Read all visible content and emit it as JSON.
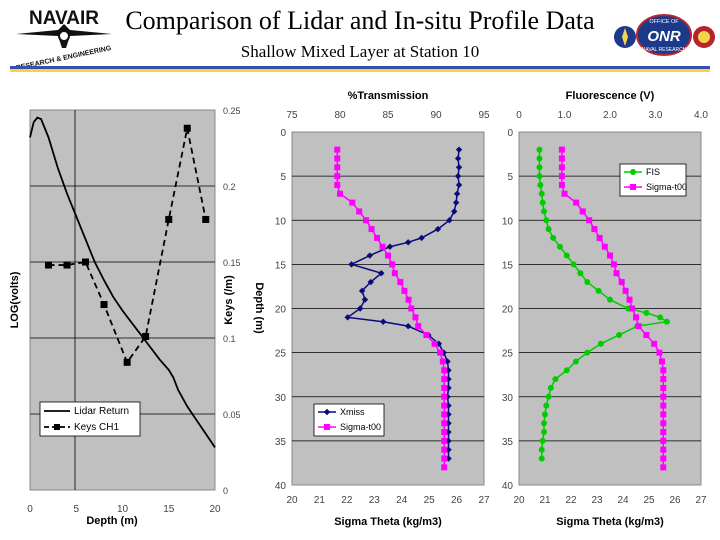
{
  "header": {
    "title": "Comparison of Lidar and In-situ Profile Data",
    "subtitle": "Shallow Mixed Layer at Station 10",
    "logo_left_text": "NAVAIR",
    "logo_left_subtext": "RESEARCH & ENGINEERING",
    "logo_right_text": "ONR",
    "logo_right_top": "OFFICE OF",
    "logo_right_bottom": "NAVAL RESEARCH"
  },
  "colors": {
    "plot_bg": "#c0c0c0",
    "lidar": "#000000",
    "transmission": "#0a0a7a",
    "sigma": "#ff00ff",
    "fluorescence": "#00cc00",
    "rule_blue": "#3a4fa8",
    "rule_yellow": "#f2d54a"
  },
  "chart_data": [
    {
      "type": "line",
      "title": "",
      "xlabel": "Depth (m)",
      "ylabel": "LOG(volts)",
      "y2label": "Keys (/m)",
      "xlim": [
        0,
        20
      ],
      "ylim": [
        0,
        0.25
      ],
      "x_ticks": [
        "0",
        "5",
        "10",
        "15",
        "20"
      ],
      "y2_ticks": [
        "0.25",
        "0.2",
        "0.15",
        "0.1",
        "0.05",
        "0"
      ],
      "series": [
        {
          "name": "Lidar Return",
          "style": "solid",
          "x": [
            0,
            0.4,
            0.8,
            1.2,
            2,
            3,
            4,
            5,
            6,
            7,
            8,
            9,
            10,
            11,
            12,
            13,
            14,
            15,
            15.5,
            16,
            17,
            18,
            19,
            20
          ],
          "y": [
            0.232,
            0.242,
            0.245,
            0.244,
            0.232,
            0.212,
            0.195,
            0.18,
            0.165,
            0.15,
            0.138,
            0.127,
            0.118,
            0.11,
            0.102,
            0.094,
            0.086,
            0.079,
            0.074,
            0.066,
            0.055,
            0.046,
            0.037,
            0.028
          ]
        },
        {
          "name": "Keys CH1",
          "style": "dashed",
          "marker": "square",
          "x": [
            2,
            4,
            6,
            8,
            10.5,
            12.5,
            15,
            17,
            19
          ],
          "y": [
            0.148,
            0.148,
            0.15,
            0.122,
            0.084,
            0.101,
            0.178,
            0.238,
            0.178
          ]
        }
      ],
      "legend": "bottom-left"
    },
    {
      "type": "line",
      "title": "%Transmission",
      "xlabel": "Sigma Theta (kg/m3)",
      "ylabel": "Depth (m)",
      "x_top_ticks": [
        "75",
        "80",
        "85",
        "90",
        "95"
      ],
      "x_bottom_ticks": [
        "20",
        "21",
        "22",
        "23",
        "24",
        "25",
        "26",
        "27"
      ],
      "y_ticks": [
        "0",
        "5",
        "10",
        "15",
        "20",
        "25",
        "30",
        "35",
        "40"
      ],
      "x_top_range": [
        75,
        95
      ],
      "x_bottom_range": [
        20,
        27
      ],
      "ylim": [
        0,
        40
      ],
      "series": [
        {
          "name": "Xmiss",
          "axis": "top",
          "x": [
            92.4,
            92.3,
            92.4,
            92.3,
            92.4,
            92.2,
            92.1,
            91.9,
            91.4,
            90.2,
            88.5,
            87.1,
            85.2,
            83.1,
            81.2,
            84.3,
            83.2,
            82.3,
            82.6,
            82.1,
            80.8,
            84.5,
            87.1,
            89.2,
            90.3,
            90.8,
            91.2,
            91.3,
            91.3,
            91.3,
            91.2,
            91.3,
            91.3,
            91.3,
            91.3,
            91.3,
            91.3,
            91.3
          ],
          "y": [
            2,
            3,
            4,
            5,
            6,
            7,
            8,
            9,
            10,
            11,
            12,
            12.5,
            13,
            14,
            15,
            16,
            17,
            18,
            19,
            20,
            21,
            21.5,
            22,
            23,
            24,
            25,
            26,
            27,
            28,
            29,
            30,
            31,
            32,
            33,
            34,
            35,
            36,
            37
          ]
        },
        {
          "name": "Sigma-t00",
          "axis": "bottom",
          "x": [
            21.65,
            21.65,
            21.65,
            21.65,
            21.65,
            21.75,
            22.2,
            22.45,
            22.7,
            22.9,
            23.1,
            23.3,
            23.5,
            23.65,
            23.75,
            23.95,
            24.1,
            24.25,
            24.35,
            24.5,
            24.6,
            24.9,
            25.2,
            25.4,
            25.5,
            25.55,
            25.55,
            25.55,
            25.55,
            25.55,
            25.55,
            25.55,
            25.55,
            25.55,
            25.55,
            25.55,
            25.55
          ],
          "y": [
            2,
            3,
            4,
            5,
            6,
            7,
            8,
            9,
            10,
            11,
            12,
            13,
            14,
            15,
            16,
            17,
            18,
            19,
            20,
            21,
            22,
            23,
            24,
            25,
            26,
            27,
            28,
            29,
            30,
            31,
            32,
            33,
            34,
            35,
            36,
            37,
            38
          ]
        }
      ],
      "legend": "bottom-left"
    },
    {
      "type": "line",
      "title": "Fluorescence (V)",
      "xlabel": "Sigma Theta (kg/m3)",
      "ylabel": "",
      "x_top_ticks": [
        "0",
        "1.0",
        "2.0",
        "3.0",
        "4.0"
      ],
      "x_bottom_ticks": [
        "20",
        "21",
        "22",
        "23",
        "24",
        "25",
        "26",
        "27"
      ],
      "y_ticks": [
        "0",
        "5",
        "10",
        "15",
        "20",
        "25",
        "30",
        "35",
        "40"
      ],
      "x_top_range": [
        0,
        4
      ],
      "x_bottom_range": [
        20,
        27
      ],
      "ylim": [
        0,
        40
      ],
      "series": [
        {
          "name": "FIS",
          "axis": "top",
          "x": [
            0.45,
            0.45,
            0.45,
            0.45,
            0.47,
            0.5,
            0.52,
            0.55,
            0.6,
            0.65,
            0.75,
            0.9,
            1.05,
            1.2,
            1.35,
            1.5,
            1.75,
            2.0,
            2.4,
            2.8,
            3.1,
            3.25,
            2.6,
            2.2,
            1.8,
            1.5,
            1.25,
            1.05,
            0.8,
            0.7,
            0.65,
            0.6,
            0.57,
            0.55,
            0.55,
            0.52,
            0.5,
            0.5
          ],
          "y": [
            2,
            3,
            4,
            5,
            6,
            7,
            8,
            9,
            10,
            11,
            12,
            13,
            14,
            15,
            16,
            17,
            18,
            19,
            20,
            20.5,
            21,
            21.5,
            22,
            23,
            24,
            25,
            26,
            27,
            28,
            29,
            30,
            31,
            32,
            33,
            34,
            35,
            36,
            37
          ]
        },
        {
          "name": "Sigma-t00",
          "axis": "bottom",
          "x": [
            21.65,
            21.65,
            21.65,
            21.65,
            21.65,
            21.75,
            22.2,
            22.45,
            22.7,
            22.9,
            23.1,
            23.3,
            23.5,
            23.65,
            23.75,
            23.95,
            24.1,
            24.25,
            24.35,
            24.5,
            24.6,
            24.9,
            25.2,
            25.4,
            25.5,
            25.55,
            25.55,
            25.55,
            25.55,
            25.55,
            25.55,
            25.55,
            25.55,
            25.55,
            25.55,
            25.55,
            25.55
          ],
          "y": [
            2,
            3,
            4,
            5,
            6,
            7,
            8,
            9,
            10,
            11,
            12,
            13,
            14,
            15,
            16,
            17,
            18,
            19,
            20,
            21,
            22,
            23,
            24,
            25,
            26,
            27,
            28,
            29,
            30,
            31,
            32,
            33,
            34,
            35,
            36,
            37,
            38
          ]
        }
      ],
      "legend": "top-right"
    }
  ]
}
